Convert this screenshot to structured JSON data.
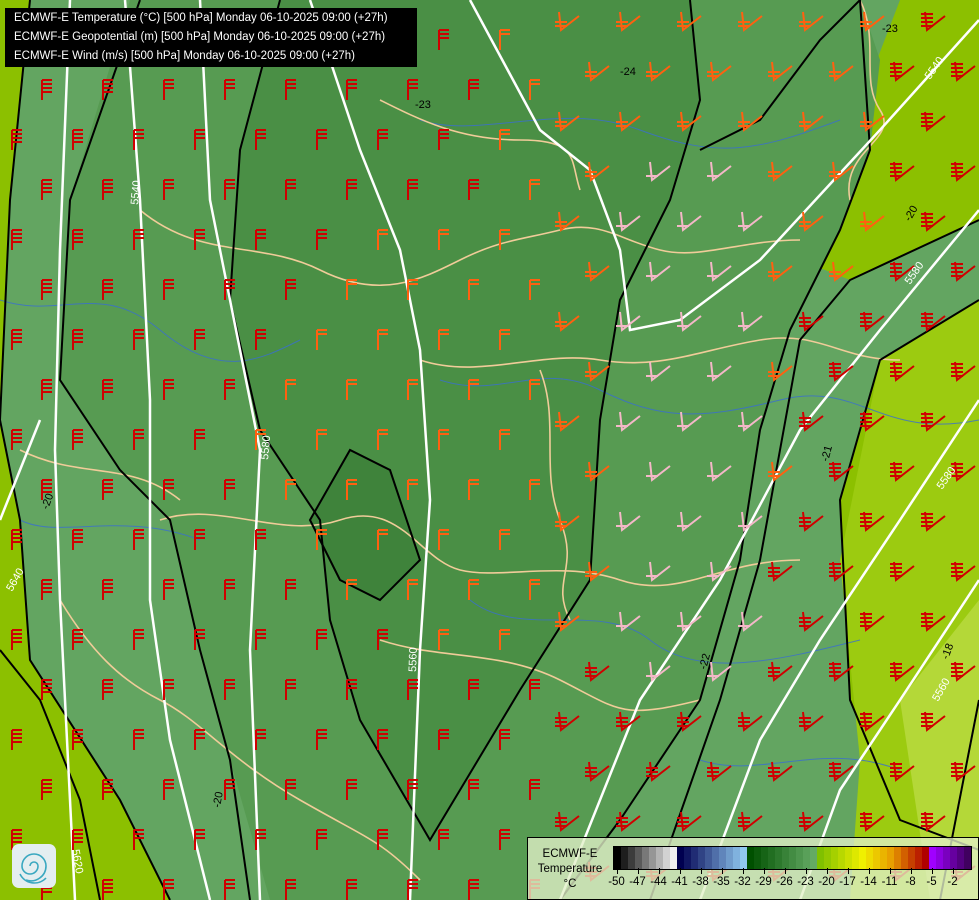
{
  "header": {
    "lines": [
      "ECMWF-E Temperature (°C) [500 hPa] Monday 06-10-2025 09:00 (+27h)",
      "ECMWF-E Geopotential (m) [500 hPa] Monday 06-10-2025 09:00 (+27h)",
      "ECMWF-E Wind (m/s) [500 hPa] Monday 06-10-2025 09:00 (+27h)"
    ]
  },
  "legend": {
    "title_line1": "ECMWF-E",
    "title_line2": "Temperature",
    "unit": "°C",
    "range": [
      -50,
      0
    ],
    "step": 1,
    "tick_labels": [
      "-50",
      "-47",
      "-44",
      "-41",
      "-38",
      "-35",
      "-32",
      "-29",
      "-26",
      "-23",
      "-20",
      "-17",
      "-14",
      "-11",
      "-8",
      "-5",
      "-2"
    ],
    "color_stops": [
      {
        "value": -50,
        "color": "#000000"
      },
      {
        "value": -42,
        "color": "#f0f0f0"
      },
      {
        "value": -41,
        "color": "#000050"
      },
      {
        "value": -32,
        "color": "#90c8f0"
      },
      {
        "value": -31,
        "color": "#005000"
      },
      {
        "value": -22,
        "color": "#64aa64"
      },
      {
        "value": -21,
        "color": "#80c000"
      },
      {
        "value": -15,
        "color": "#f0f000"
      },
      {
        "value": -11,
        "color": "#e8a000"
      },
      {
        "value": -6,
        "color": "#b00000"
      },
      {
        "value": -5,
        "color": "#a000ff"
      },
      {
        "value": 0,
        "color": "#400060"
      }
    ]
  },
  "map": {
    "temperature_contour_labels": [
      "-23",
      "-24",
      "-23",
      "-20",
      "-20",
      "-21",
      "-22",
      "-18",
      "-20"
    ],
    "geopotential_contour_labels": [
      "5540",
      "5580",
      "5560",
      "5580",
      "5540",
      "5560",
      "5580",
      "5640",
      "5620"
    ],
    "colors": {
      "temperature_isotherm": "#000000",
      "geopotential_isoline": "#ffffff",
      "borders": "#f0cc99",
      "rivers": "#3a6ed0",
      "wind_strong": "#d00000",
      "wind_medium": "#ff6010",
      "wind_weak": "#f4b8c8"
    }
  }
}
